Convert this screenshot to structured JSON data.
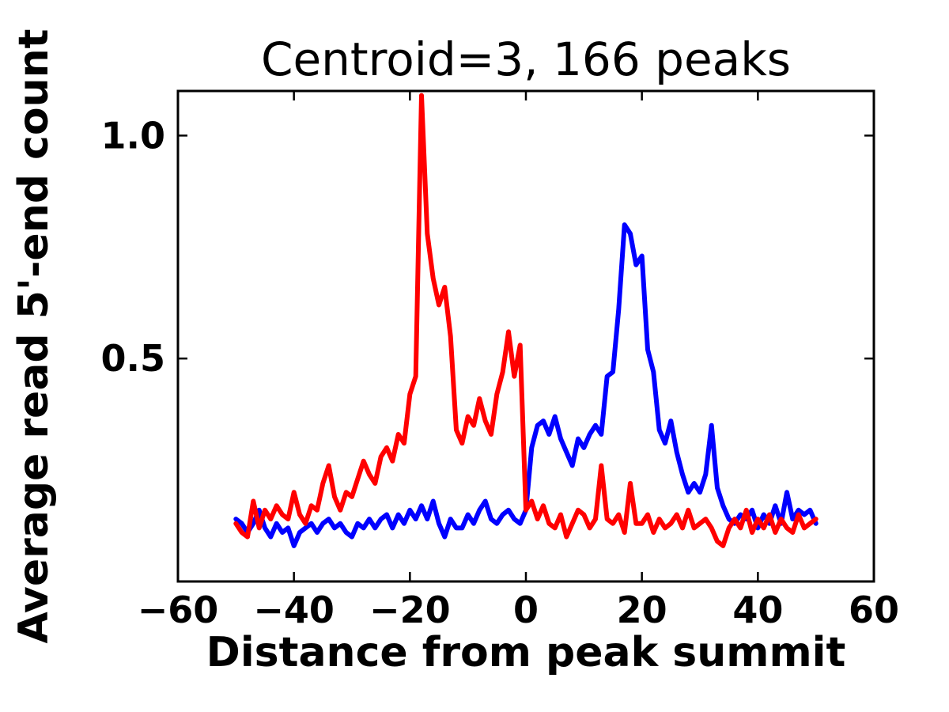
{
  "figure": {
    "title": "Centroid=3, 166 peaks",
    "xlabel": "Distance from peak summit",
    "ylabel": "Average read 5'-end count"
  },
  "chart_data": {
    "type": "line",
    "title": "Centroid=3, 166 peaks",
    "xlabel": "Distance from peak summit",
    "ylabel": "Average read 5'-end count",
    "xlim": [
      -60,
      60
    ],
    "ylim": [
      0,
      1.1
    ],
    "xticks": [
      -60,
      -40,
      -20,
      0,
      20,
      40,
      60
    ],
    "yticks": [
      0.5,
      1.0
    ],
    "grid": false,
    "legend_position": "none",
    "axis_color": "#000000",
    "x": [
      -50,
      -49,
      -48,
      -47,
      -46,
      -45,
      -44,
      -43,
      -42,
      -41,
      -40,
      -39,
      -38,
      -37,
      -36,
      -35,
      -34,
      -33,
      -32,
      -31,
      -30,
      -29,
      -28,
      -27,
      -26,
      -25,
      -24,
      -23,
      -22,
      -21,
      -20,
      -19,
      -18,
      -17,
      -16,
      -15,
      -14,
      -13,
      -12,
      -11,
      -10,
      -9,
      -8,
      -7,
      -6,
      -5,
      -4,
      -3,
      -2,
      -1,
      0,
      1,
      2,
      3,
      4,
      5,
      6,
      7,
      8,
      9,
      10,
      11,
      12,
      13,
      14,
      15,
      16,
      17,
      18,
      19,
      20,
      21,
      22,
      23,
      24,
      25,
      26,
      27,
      28,
      29,
      30,
      31,
      32,
      33,
      34,
      35,
      36,
      37,
      38,
      39,
      40,
      41,
      42,
      43,
      44,
      45,
      46,
      47,
      48,
      49,
      50
    ],
    "series": [
      {
        "name": "blue-line",
        "color": "#0000ff",
        "values": [
          0.14,
          0.13,
          0.11,
          0.13,
          0.16,
          0.12,
          0.1,
          0.13,
          0.11,
          0.12,
          0.08,
          0.11,
          0.12,
          0.13,
          0.11,
          0.13,
          0.14,
          0.12,
          0.13,
          0.11,
          0.1,
          0.13,
          0.12,
          0.14,
          0.12,
          0.14,
          0.15,
          0.12,
          0.15,
          0.13,
          0.16,
          0.14,
          0.17,
          0.14,
          0.18,
          0.13,
          0.1,
          0.14,
          0.12,
          0.12,
          0.15,
          0.13,
          0.16,
          0.18,
          0.14,
          0.13,
          0.15,
          0.16,
          0.14,
          0.13,
          0.16,
          0.3,
          0.35,
          0.36,
          0.33,
          0.37,
          0.32,
          0.29,
          0.26,
          0.32,
          0.3,
          0.33,
          0.35,
          0.33,
          0.46,
          0.47,
          0.61,
          0.8,
          0.78,
          0.71,
          0.73,
          0.52,
          0.47,
          0.34,
          0.31,
          0.36,
          0.29,
          0.24,
          0.2,
          0.22,
          0.2,
          0.24,
          0.35,
          0.21,
          0.17,
          0.14,
          0.13,
          0.15,
          0.14,
          0.16,
          0.12,
          0.15,
          0.13,
          0.17,
          0.13,
          0.2,
          0.14,
          0.16,
          0.15,
          0.16,
          0.13
        ]
      },
      {
        "name": "red-line",
        "color": "#ff0000",
        "values": [
          0.13,
          0.11,
          0.1,
          0.18,
          0.12,
          0.16,
          0.14,
          0.17,
          0.15,
          0.14,
          0.2,
          0.15,
          0.13,
          0.17,
          0.16,
          0.22,
          0.26,
          0.19,
          0.16,
          0.2,
          0.19,
          0.23,
          0.27,
          0.24,
          0.22,
          0.28,
          0.3,
          0.27,
          0.33,
          0.31,
          0.42,
          0.46,
          1.09,
          0.78,
          0.68,
          0.62,
          0.66,
          0.55,
          0.34,
          0.31,
          0.37,
          0.35,
          0.41,
          0.36,
          0.33,
          0.42,
          0.47,
          0.56,
          0.46,
          0.53,
          0.16,
          0.18,
          0.14,
          0.17,
          0.13,
          0.12,
          0.15,
          0.1,
          0.13,
          0.16,
          0.15,
          0.12,
          0.14,
          0.26,
          0.14,
          0.13,
          0.15,
          0.11,
          0.22,
          0.13,
          0.13,
          0.15,
          0.11,
          0.14,
          0.12,
          0.13,
          0.15,
          0.12,
          0.16,
          0.12,
          0.13,
          0.14,
          0.12,
          0.09,
          0.08,
          0.12,
          0.14,
          0.12,
          0.16,
          0.11,
          0.14,
          0.12,
          0.15,
          0.11,
          0.14,
          0.12,
          0.11,
          0.15,
          0.12,
          0.13,
          0.14
        ]
      }
    ]
  }
}
